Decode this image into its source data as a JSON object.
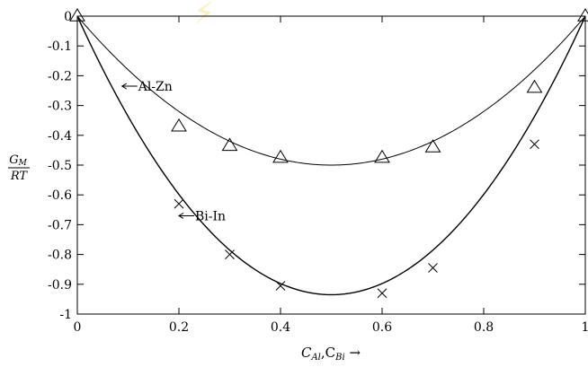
{
  "chart_data": {
    "type": "line",
    "title": "",
    "xlabel": "C_Al, C_Bi →",
    "xlabel_parts": {
      "c1": "C",
      "s1": "Al",
      "sep": ",C",
      "s2": "Bi",
      "arrow": " →"
    },
    "ylabel": "G_M / RT",
    "ylabel_parts": {
      "num_main": "G",
      "num_sub": "M",
      "den": "RT"
    },
    "xlim": [
      0,
      1
    ],
    "ylim": [
      -1,
      0
    ],
    "xticks": [
      "0",
      "0.2",
      "0.4",
      "0.6",
      "0.8",
      "1"
    ],
    "xtick_values": [
      0,
      0.2,
      0.4,
      0.6,
      0.8,
      1
    ],
    "yticks": [
      "0",
      "-0.1",
      "-0.2",
      "-0.3",
      "-0.4",
      "-0.5",
      "-0.6",
      "-0.7",
      "-0.8",
      "-0.9",
      "-1"
    ],
    "ytick_values": [
      0,
      -0.1,
      -0.2,
      -0.3,
      -0.4,
      -0.5,
      -0.6,
      -0.7,
      -0.8,
      -0.9,
      -1
    ],
    "grid": false,
    "series": [
      {
        "name": "Al-Zn",
        "marker": "triangle",
        "points_x": [
          0,
          0.2,
          0.3,
          0.4,
          0.6,
          0.7,
          0.9,
          1
        ],
        "points_y": [
          0,
          -0.37,
          -0.435,
          -0.475,
          -0.475,
          -0.44,
          -0.24,
          0
        ],
        "curve_min": -0.5
      },
      {
        "name": "Bi-In",
        "marker": "cross",
        "points_x": [
          0.2,
          0.3,
          0.4,
          0.6,
          0.7,
          0.9
        ],
        "points_y": [
          -0.63,
          -0.8,
          -0.905,
          -0.93,
          -0.845,
          -0.43
        ],
        "curve_min": -0.935
      }
    ]
  }
}
